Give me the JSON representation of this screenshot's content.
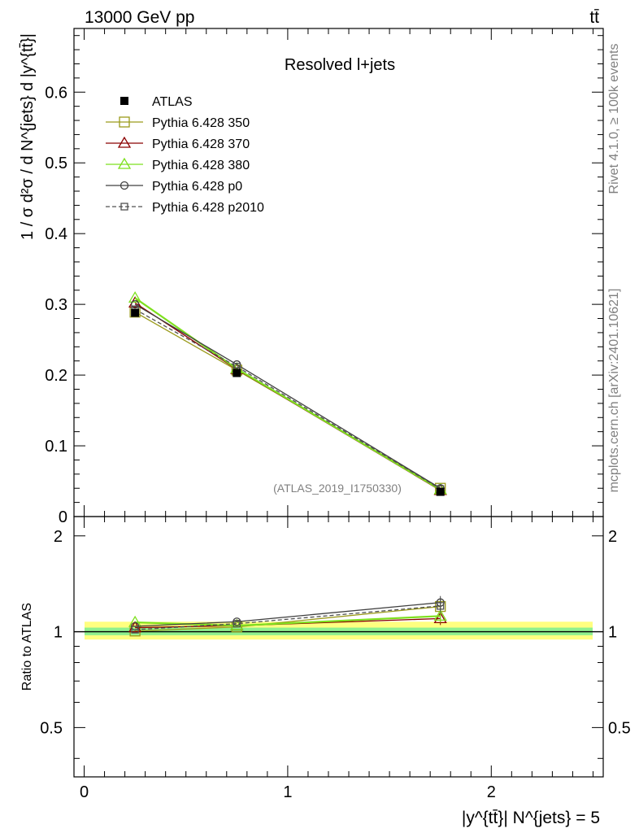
{
  "chart_data": {
    "type": "line",
    "header_left": "13000 GeV pp",
    "header_right": "tt̄",
    "title": "Resolved l+jets",
    "watermark": "(ATLAS_2019_I1750330)",
    "side_label_top": "Rivet 4.1.0, ≥ 100k events",
    "side_label_bottom": "mcplots.cern.ch [arXiv:2401.10621]",
    "ylabel_main": "1 / σ d²σ / d N^{jets} d |y^{tt̄}|",
    "ylabel_ratio": "Ratio to ATLAS",
    "xlabel": "|y^{tt̄}| N^{jets} = 5",
    "x_ticks": [
      "0",
      "1",
      "2"
    ],
    "y_ticks_main": [
      "0",
      "0.1",
      "0.2",
      "0.3",
      "0.4",
      "0.5",
      "0.6"
    ],
    "y_ticks_ratio": [
      "0.5",
      "1",
      "2"
    ],
    "xlim": [
      -0.05,
      2.55
    ],
    "ylim_main": [
      0,
      0.69
    ],
    "ylim_ratio": [
      0.35,
      2.3
    ],
    "x": [
      0.25,
      0.75,
      1.75
    ],
    "data": {
      "name": "ATLAS",
      "values": [
        0.288,
        0.203,
        0.035
      ],
      "ratio_band_inner": [
        0.975,
        1.03
      ],
      "ratio_band_outer": [
        0.945,
        1.075
      ]
    },
    "series": [
      {
        "name": "Pythia 6.428 350",
        "color": "#9a9a1a",
        "marker": "square-open",
        "dash": "none",
        "values": [
          0.289,
          0.207,
          0.04
        ],
        "ratio": [
          1.005,
          1.035,
          1.2
        ]
      },
      {
        "name": "Pythia 6.428 370",
        "color": "#8b0000",
        "marker": "triangle-open",
        "dash": "none",
        "values": [
          0.302,
          0.208,
          0.037
        ],
        "ratio": [
          1.03,
          1.045,
          1.1
        ]
      },
      {
        "name": "Pythia 6.428 380",
        "color": "#7ee01e",
        "marker": "triangle-open",
        "dash": "none",
        "values": [
          0.309,
          0.209,
          0.038
        ],
        "ratio": [
          1.07,
          1.045,
          1.12
        ]
      },
      {
        "name": "Pythia 6.428 p0",
        "color": "#404040",
        "marker": "circle-open",
        "dash": "none",
        "values": [
          0.3,
          0.215,
          0.04
        ],
        "ratio": [
          1.04,
          1.075,
          1.235
        ]
      },
      {
        "name": "Pythia 6.428 p2010",
        "color": "#505050",
        "marker": "square-open-small",
        "dash": "dashed",
        "values": [
          0.293,
          0.212,
          0.039
        ],
        "ratio": [
          1.015,
          1.06,
          1.205
        ]
      }
    ]
  }
}
